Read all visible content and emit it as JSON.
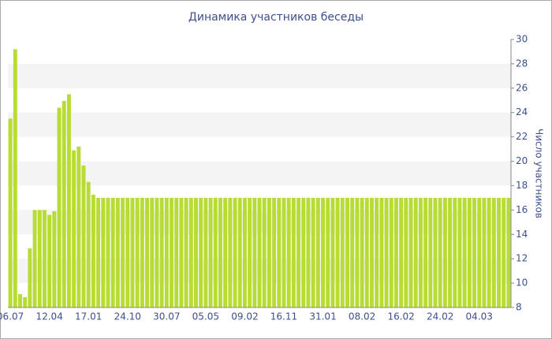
{
  "chart_data": {
    "type": "bar",
    "title": "Динамика участников беседы",
    "y_label": "Число участников",
    "categories": [
      "06.07",
      null,
      null,
      null,
      null,
      null,
      null,
      null,
      "12.04",
      null,
      null,
      null,
      null,
      null,
      null,
      null,
      "17.01",
      null,
      null,
      null,
      null,
      null,
      null,
      null,
      "24.10",
      null,
      null,
      null,
      null,
      null,
      null,
      null,
      "30.07",
      null,
      null,
      null,
      null,
      null,
      null,
      null,
      "05.05",
      null,
      null,
      null,
      null,
      null,
      null,
      null,
      "09.02",
      null,
      null,
      null,
      null,
      null,
      null,
      null,
      "16.11",
      null,
      null,
      null,
      null,
      null,
      null,
      null,
      "31.01",
      null,
      null,
      null,
      null,
      null,
      null,
      null,
      "08.02",
      null,
      null,
      null,
      null,
      null,
      null,
      null,
      "16.02",
      null,
      null,
      null,
      null,
      null,
      null,
      null,
      "24.02",
      null,
      null,
      null,
      null,
      null,
      null,
      null,
      "04.03",
      null,
      null,
      null,
      null,
      null,
      null
    ],
    "values": [
      23.5,
      29.2,
      9.1,
      8.85,
      12.85,
      16,
      16,
      16,
      15.6,
      15.9,
      24.4,
      24.95,
      25.5,
      20.9,
      21.2,
      19.65,
      18.3,
      17.25,
      17,
      17,
      17,
      17,
      17,
      17,
      17,
      17,
      17,
      17,
      17,
      17,
      17,
      17,
      17,
      17,
      17,
      17,
      17,
      17,
      17,
      17,
      17,
      17,
      17,
      17,
      17,
      17,
      17,
      17,
      17,
      17,
      17,
      17,
      17,
      17,
      17,
      17,
      17,
      17,
      17,
      17,
      17,
      17,
      17,
      17,
      17,
      17,
      17,
      17,
      17,
      17,
      17,
      17,
      17,
      17,
      17,
      17,
      17,
      17,
      17,
      17,
      17,
      17,
      17,
      17,
      17,
      17,
      17,
      17,
      17,
      17,
      17,
      17,
      17,
      17,
      17,
      17,
      17,
      17,
      17,
      17,
      17,
      17,
      17
    ],
    "color": "#b8dc34",
    "ylim": [
      8,
      30
    ],
    "yticks": [
      8,
      10,
      12,
      14,
      16,
      18,
      20,
      22,
      24,
      26,
      28,
      30
    ],
    "grid": true
  }
}
